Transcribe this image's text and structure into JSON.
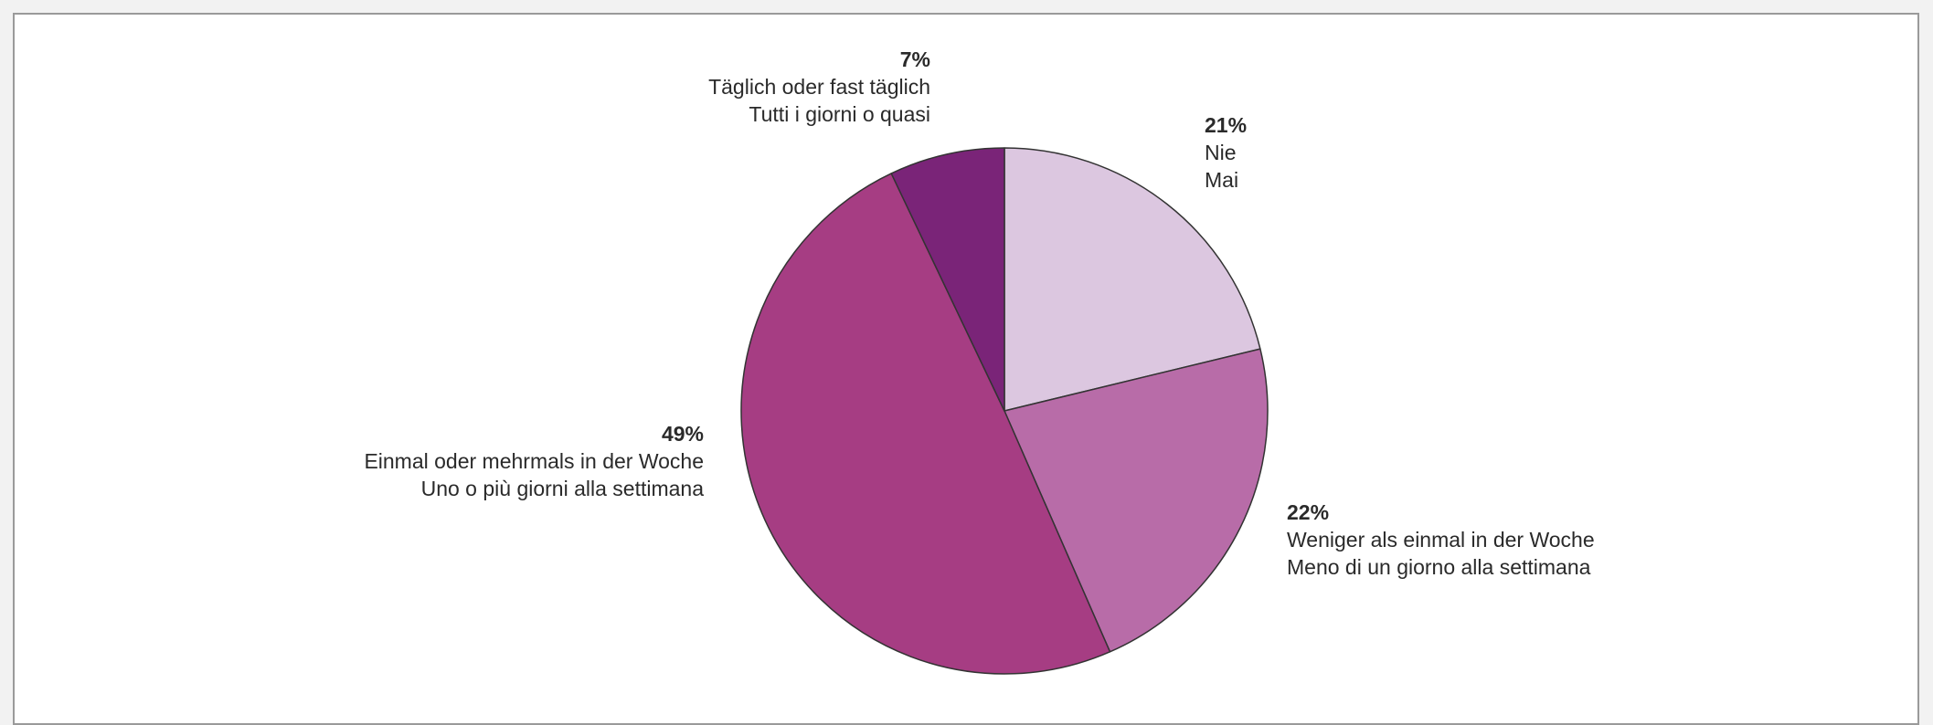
{
  "chart_data": {
    "type": "pie",
    "slices": [
      {
        "value": 21,
        "pct_label": "21%",
        "label_de": "Nie",
        "label_it": "Mai",
        "color": "#dcc7e0"
      },
      {
        "value": 22,
        "pct_label": "22%",
        "label_de": "Weniger als einmal in der Woche",
        "label_it": "Meno di un giorno alla settimana",
        "color": "#b86ca8"
      },
      {
        "value": 49,
        "pct_label": "49%",
        "label_de": "Einmal oder mehrmals in der Woche",
        "label_it": "Uno o più giorni alla settimana",
        "color": "#a63d83"
      },
      {
        "value": 7,
        "pct_label": "7%",
        "label_de": "Täglich oder fast täglich",
        "label_it": "Tutti i giorni o quasi",
        "color": "#7a2478"
      }
    ],
    "start_angle": "12 o'clock",
    "direction": "clockwise",
    "legend": "none (labels beside slices)"
  }
}
